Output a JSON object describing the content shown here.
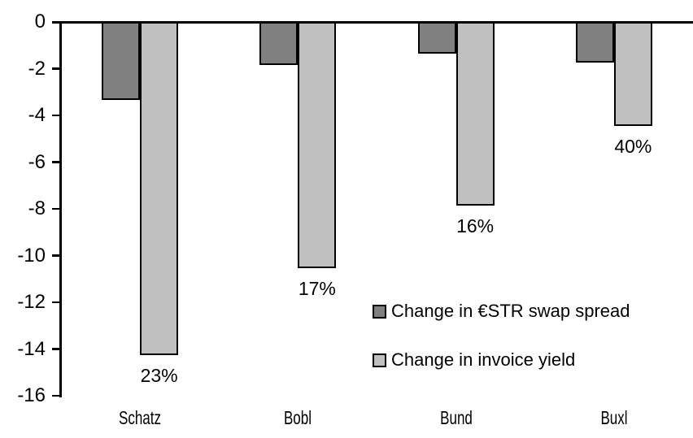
{
  "chart_data": {
    "type": "bar",
    "title": "",
    "xlabel": "",
    "ylabel": "",
    "categories": [
      "Schatz",
      "Bobl",
      "Bund",
      "Buxl"
    ],
    "series": [
      {
        "name": "Change in €STR swap spread",
        "color": "#808080",
        "values": [
          -3.3,
          -1.8,
          -1.3,
          -1.7
        ]
      },
      {
        "name": "Change in invoice yield",
        "color": "#c0c0c0",
        "values": [
          -14.2,
          -10.5,
          -7.8,
          -4.4
        ],
        "point_labels": [
          "23%",
          "17%",
          "16%",
          "40%"
        ]
      }
    ],
    "ylim": [
      -16,
      0
    ],
    "yticks": [
      0,
      -2,
      -4,
      -6,
      -8,
      -10,
      -12,
      -14,
      -16
    ],
    "grid": false,
    "legend_position": "inside-right",
    "axis_color": "#000000",
    "background": "#ffffff",
    "bar_outline_color": "#000000"
  }
}
